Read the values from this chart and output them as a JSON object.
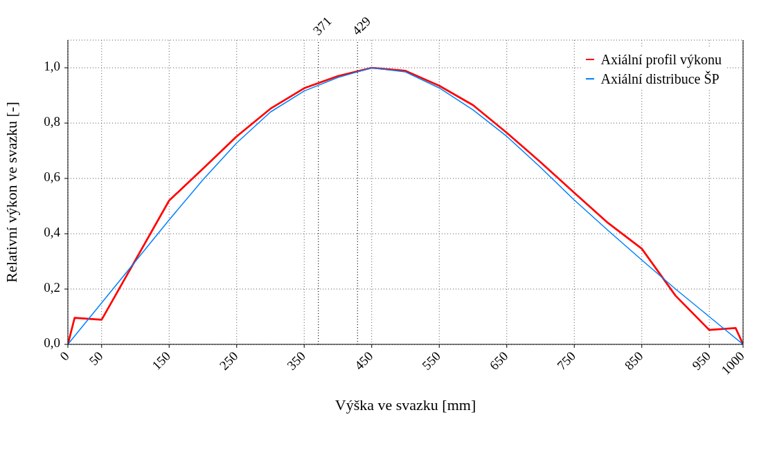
{
  "chart_data": {
    "type": "line",
    "xlabel": "Výška ve svazku [mm]",
    "ylabel": "Relativní výkon ve svazku [-]",
    "xlim": [
      0,
      1000
    ],
    "ylim": [
      0,
      1.1
    ],
    "xticks": [
      0,
      50,
      150,
      250,
      350,
      450,
      550,
      650,
      750,
      850,
      950,
      1000
    ],
    "yticks": [
      {
        "value": 0,
        "label": "0,0"
      },
      {
        "value": 0.2,
        "label": "0,2"
      },
      {
        "value": 0.4,
        "label": "0,4"
      },
      {
        "value": 0.6,
        "label": "0,6"
      },
      {
        "value": 0.8,
        "label": "0,8"
      },
      {
        "value": 1,
        "label": "1,0"
      }
    ],
    "grid": true,
    "legend": "top right",
    "marker": "none",
    "line_style": "solid",
    "ref_lines": [
      {
        "axis": "x",
        "value": 371,
        "label": "371",
        "color": "#000000",
        "line_style": "dotted"
      },
      {
        "axis": "x",
        "value": 429,
        "label": "429",
        "color": "#000000",
        "line_style": "dotted"
      }
    ],
    "series": [
      {
        "name": "Axiální profil výkonu",
        "color": "#ff0000",
        "x": [
          0,
          10,
          50,
          150,
          200,
          250,
          300,
          350,
          400,
          450,
          500,
          550,
          600,
          650,
          700,
          750,
          800,
          850,
          900,
          950,
          989,
          1000
        ],
        "values": [
          0,
          0.096,
          0.089,
          0.52,
          0.635,
          0.752,
          0.852,
          0.926,
          0.97,
          1.0,
          0.989,
          0.935,
          0.865,
          0.765,
          0.659,
          0.548,
          0.439,
          0.346,
          0.176,
          0.052,
          0.059,
          0
        ]
      },
      {
        "name": "Axiální distribuce ŠP",
        "color": "#0080ff",
        "x": [
          0,
          50,
          100,
          150,
          200,
          250,
          300,
          350,
          400,
          450,
          500,
          550,
          600,
          650,
          700,
          750,
          800,
          850,
          900,
          950,
          1000
        ],
        "values": [
          0,
          0.15,
          0.3,
          0.45,
          0.595,
          0.728,
          0.84,
          0.916,
          0.965,
          1.0,
          0.985,
          0.927,
          0.848,
          0.752,
          0.64,
          0.522,
          0.412,
          0.305,
          0.2,
          0.1,
          0
        ]
      }
    ]
  }
}
